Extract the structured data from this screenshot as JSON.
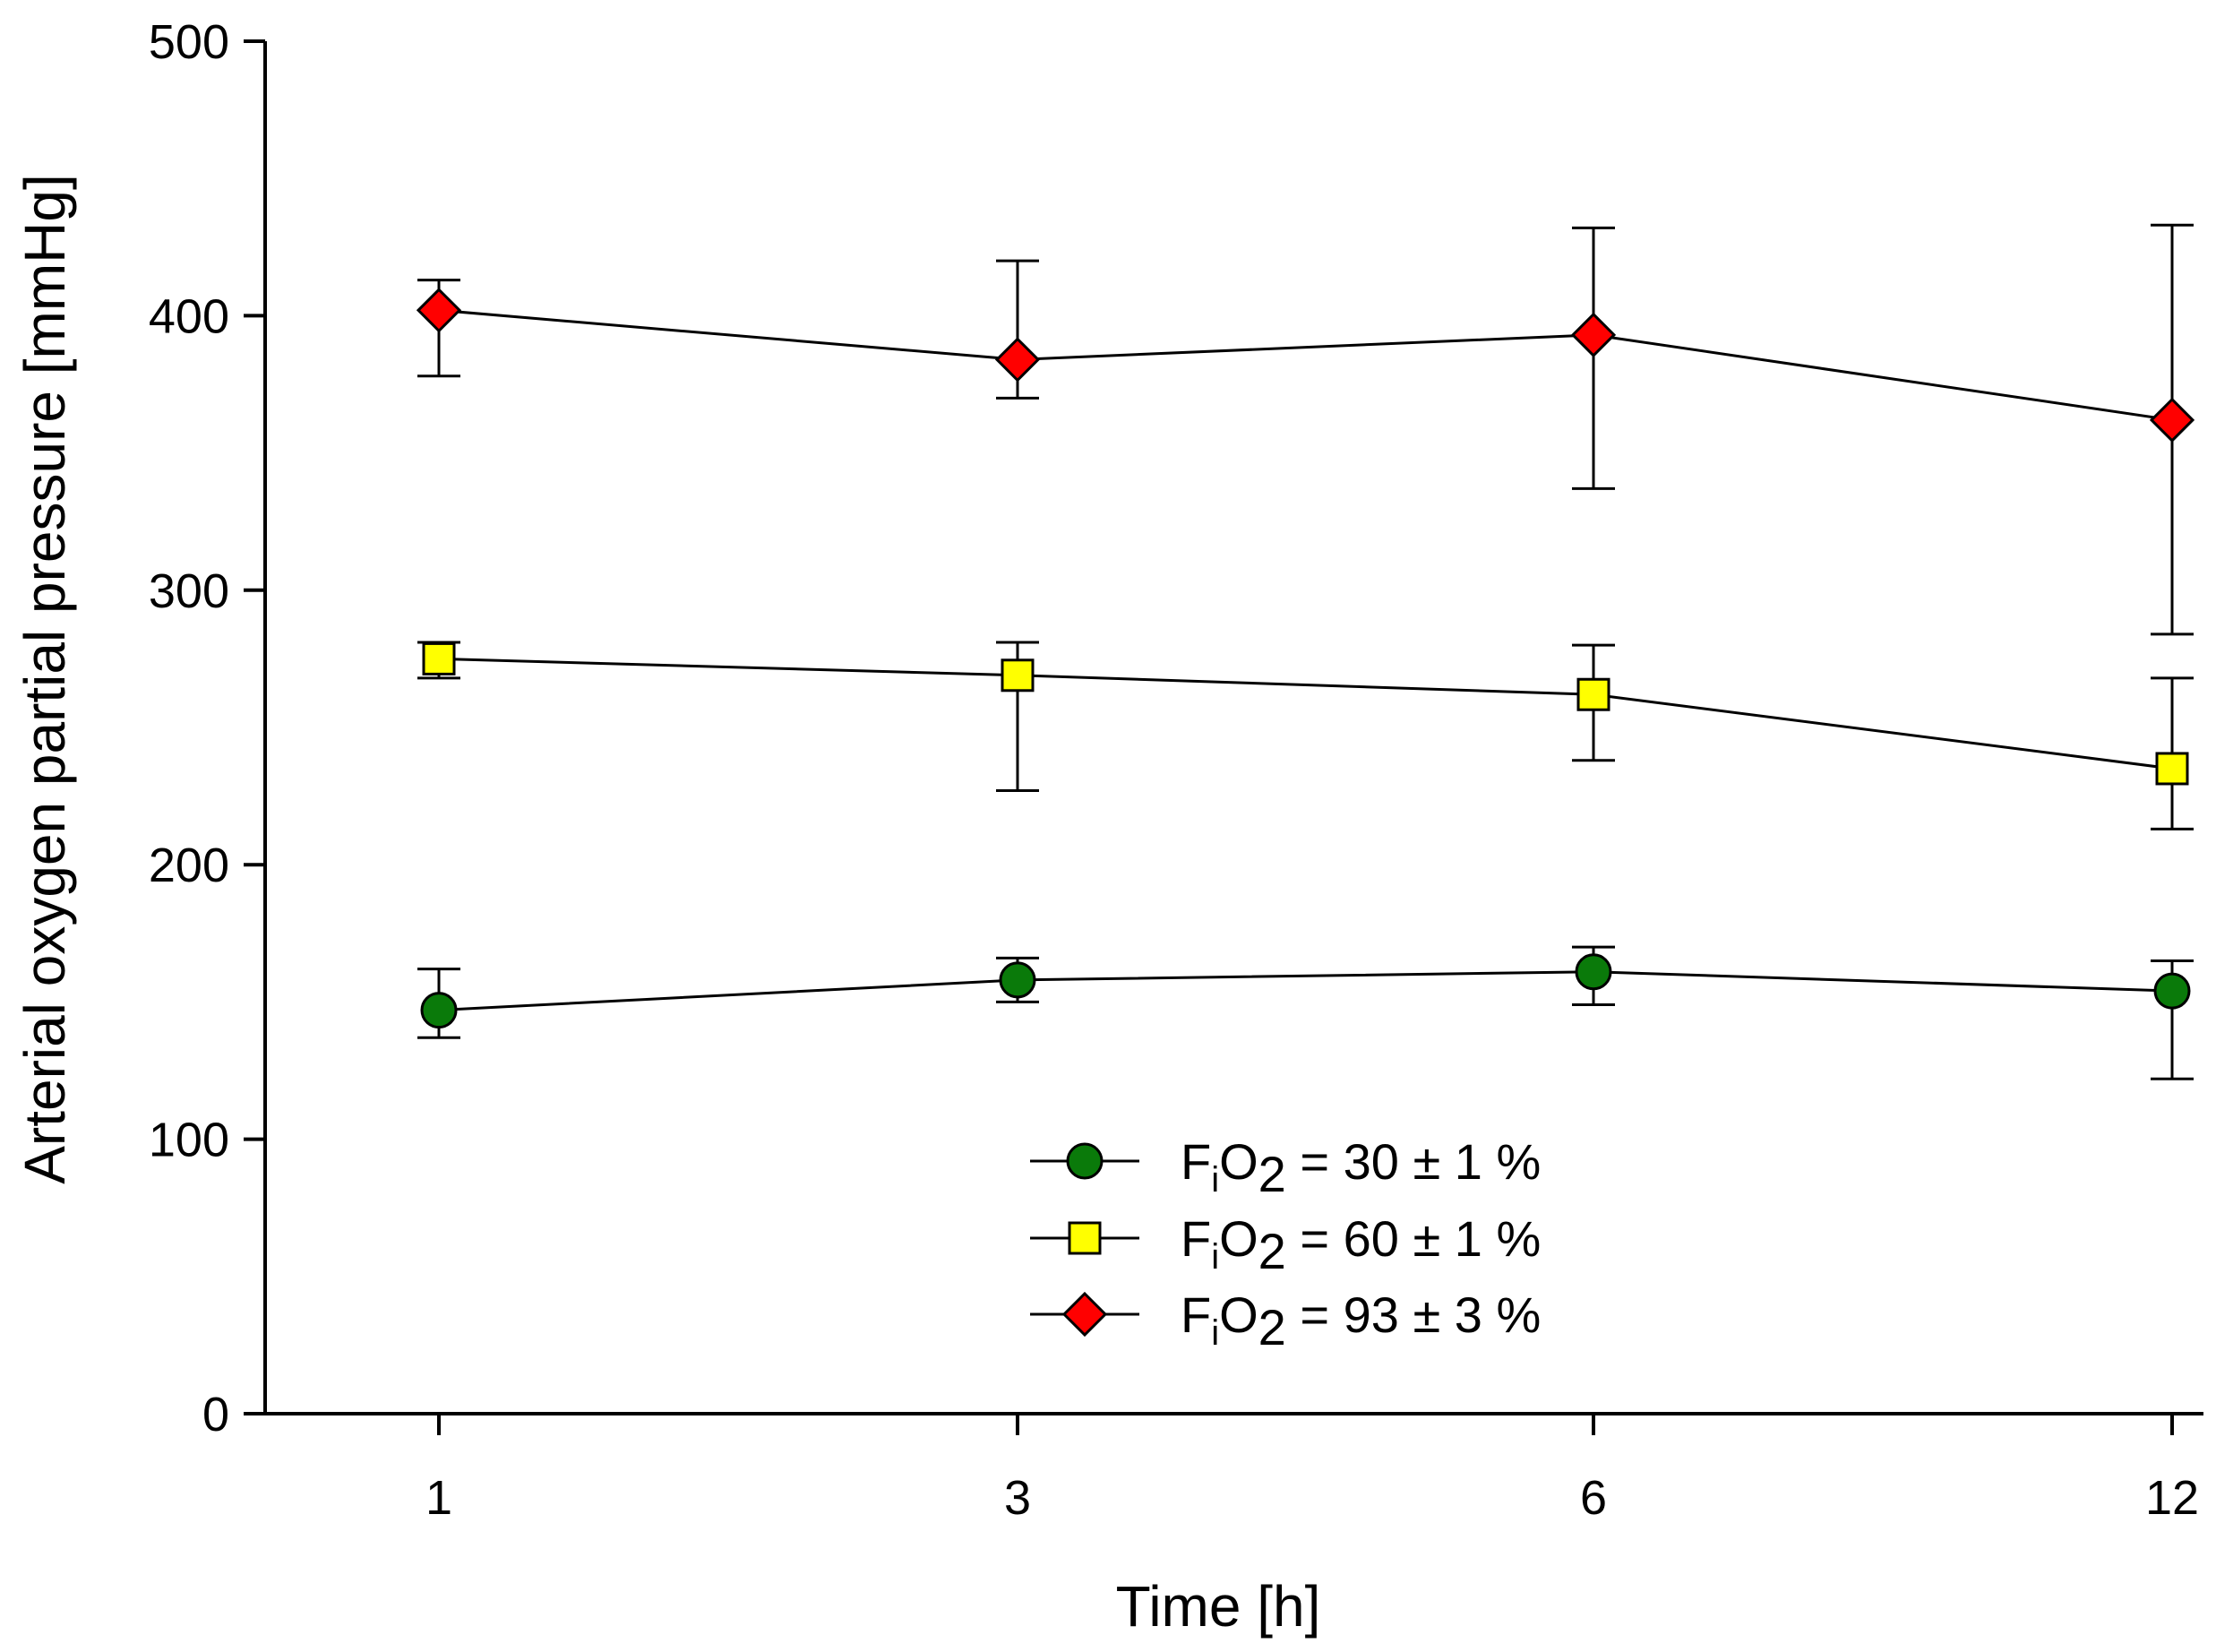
{
  "chart_data": {
    "type": "line",
    "title": "",
    "xlabel": "Time [h]",
    "ylabel": "Arterial oxygen partial pressure [mmHg]",
    "categories": [
      "1",
      "3",
      "6",
      "12"
    ],
    "ylim": [
      0,
      500
    ],
    "yticks": [
      "0",
      "100",
      "200",
      "300",
      "400",
      "500"
    ],
    "grid": false,
    "legend_position": "center-bottom",
    "error_bars": true,
    "series": [
      {
        "name": "FiO2 = 30 ± 1 %",
        "legend": {
          "main": "F",
          "sub": "i",
          "mid": "O",
          "sub2": "2",
          "rest": " = 30 ± 1 %"
        },
        "marker": "circle",
        "color": "#0a7a0a",
        "values": [
          147,
          158,
          161,
          154
        ],
        "err_upper": [
          162,
          166,
          170,
          165
        ],
        "err_lower": [
          137,
          150,
          149,
          122
        ]
      },
      {
        "name": "FiO2 = 60 ± 1 %",
        "legend": {
          "main": "F",
          "sub": "i",
          "mid": "O",
          "sub2": "2",
          "rest": " = 60 ± 1 %"
        },
        "marker": "square",
        "color": "#ffff00",
        "values": [
          275,
          269,
          262,
          235
        ],
        "err_upper": [
          281,
          281,
          280,
          268
        ],
        "err_lower": [
          268,
          227,
          238,
          213
        ]
      },
      {
        "name": "FiO2 = 93 ± 3 %",
        "legend": {
          "main": "F",
          "sub": "i",
          "mid": "O",
          "sub2": "2",
          "rest": " = 93 ± 3 %"
        },
        "marker": "diamond",
        "color": "#ff0000",
        "values": [
          402,
          384,
          393,
          362
        ],
        "err_upper": [
          413,
          420,
          432,
          433
        ],
        "err_lower": [
          378,
          370,
          337,
          284
        ]
      }
    ]
  }
}
